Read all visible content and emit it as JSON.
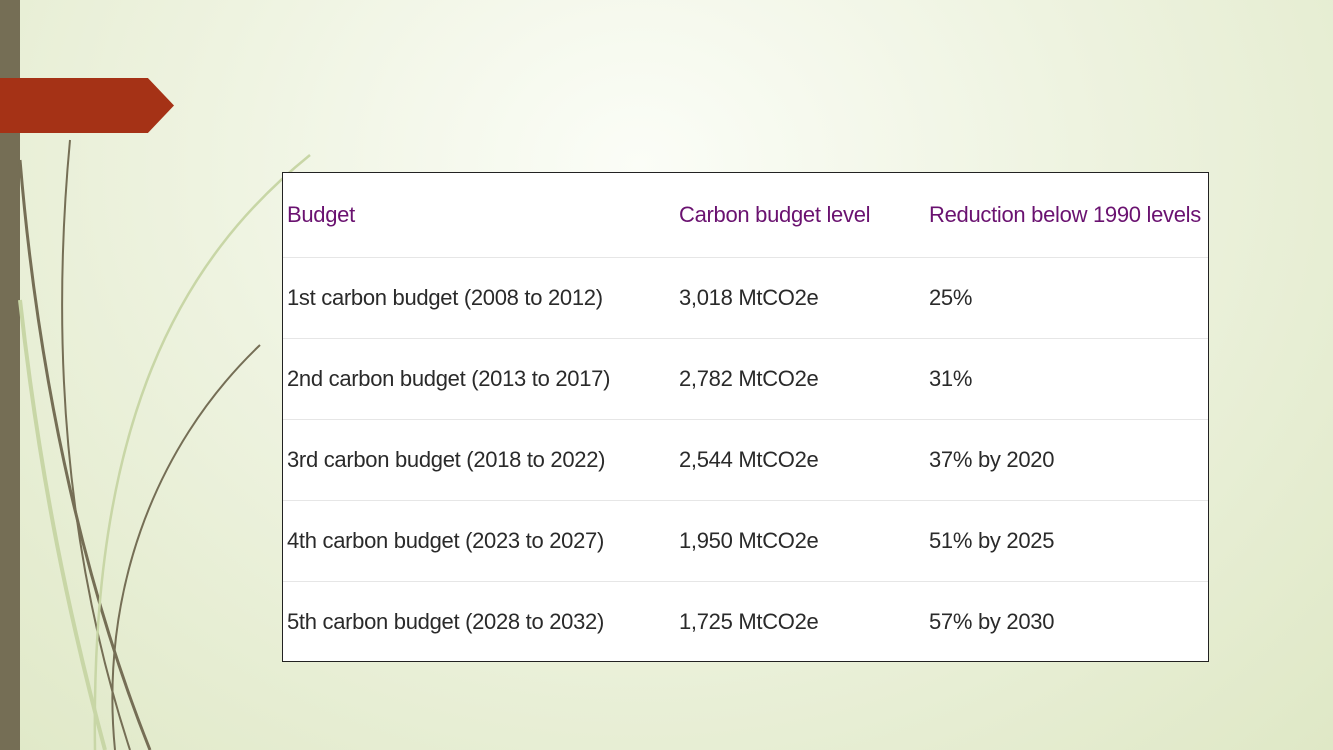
{
  "colors": {
    "background": "#eef3e0",
    "left_bar": "#756e55",
    "arrow_tab": "#a53216",
    "header_text": "#6a1270",
    "cell_text": "#2a2a2a",
    "decor_strokes": [
      "#756e55",
      "#c8d6a6"
    ]
  },
  "table": {
    "headers": [
      "Budget",
      "Carbon budget level",
      "Reduction below 1990 levels"
    ],
    "rows": [
      [
        "1st carbon budget (2008 to 2012)",
        "3,018 MtCO2e",
        "25%"
      ],
      [
        "2nd carbon budget (2013 to 2017)",
        "2,782 MtCO2e",
        "31%"
      ],
      [
        "3rd carbon budget (2018 to 2022)",
        "2,544 MtCO2e",
        "37% by 2020"
      ],
      [
        "4th carbon budget (2023 to 2027)",
        "1,950 MtCO2e",
        "51% by 2025"
      ],
      [
        "5th carbon budget (2028 to 2032)",
        "1,725 MtCO2e",
        "57% by 2030"
      ]
    ]
  }
}
